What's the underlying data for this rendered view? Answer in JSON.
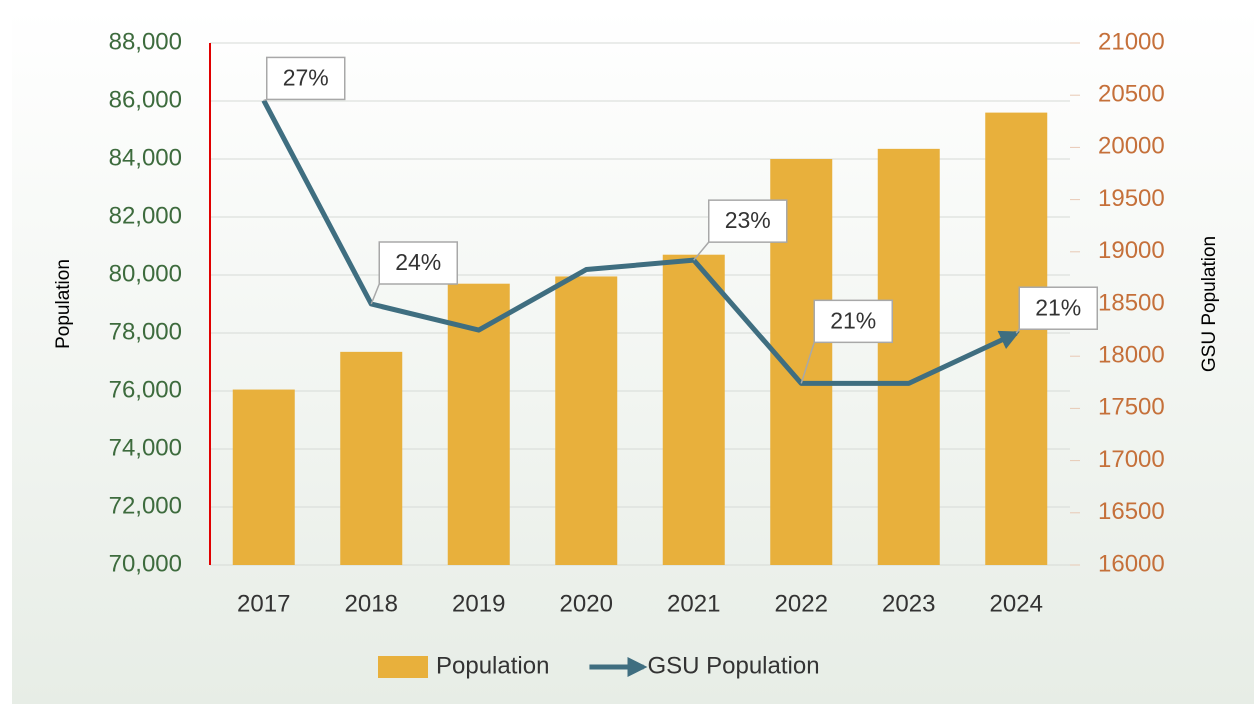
{
  "chart_data": {
    "type": "bar_line",
    "categories": [
      "2017",
      "2018",
      "2019",
      "2020",
      "2021",
      "2022",
      "2023",
      "2024"
    ],
    "series": [
      {
        "name": "Population",
        "type": "bar",
        "color": "#e8b03c",
        "values": [
          76050,
          77350,
          79700,
          79950,
          80700,
          84000,
          84350,
          85600
        ]
      },
      {
        "name": "GSU Population",
        "type": "line",
        "axis": "y2",
        "color": "#3f6e80",
        "values": [
          20450,
          18500,
          18250,
          18830,
          18920,
          17740,
          17740,
          18220
        ],
        "data_labels": [
          "27%",
          "24%",
          null,
          null,
          "23%",
          "21%",
          null,
          "21%"
        ]
      }
    ],
    "ylabel": "Population",
    "y2label": "GSU Population",
    "ylim": [
      70000,
      88000
    ],
    "yticks": [
      {
        "value": 70000,
        "label": "70,000"
      },
      {
        "value": 72000,
        "label": "72,000"
      },
      {
        "value": 74000,
        "label": "74,000"
      },
      {
        "value": 76000,
        "label": "76,000"
      },
      {
        "value": 78000,
        "label": "78,000"
      },
      {
        "value": 80000,
        "label": "80,000"
      },
      {
        "value": 82000,
        "label": "82,000"
      },
      {
        "value": 84000,
        "label": "84,000"
      },
      {
        "value": 86000,
        "label": "86,000"
      },
      {
        "value": 88000,
        "label": "88,000"
      }
    ],
    "y2lim": [
      16000,
      21000
    ],
    "y2ticks": [
      16000,
      16500,
      17000,
      17500,
      18000,
      18500,
      19000,
      19500,
      20000,
      20500,
      21000
    ],
    "grid": true,
    "legend": "bottom"
  }
}
